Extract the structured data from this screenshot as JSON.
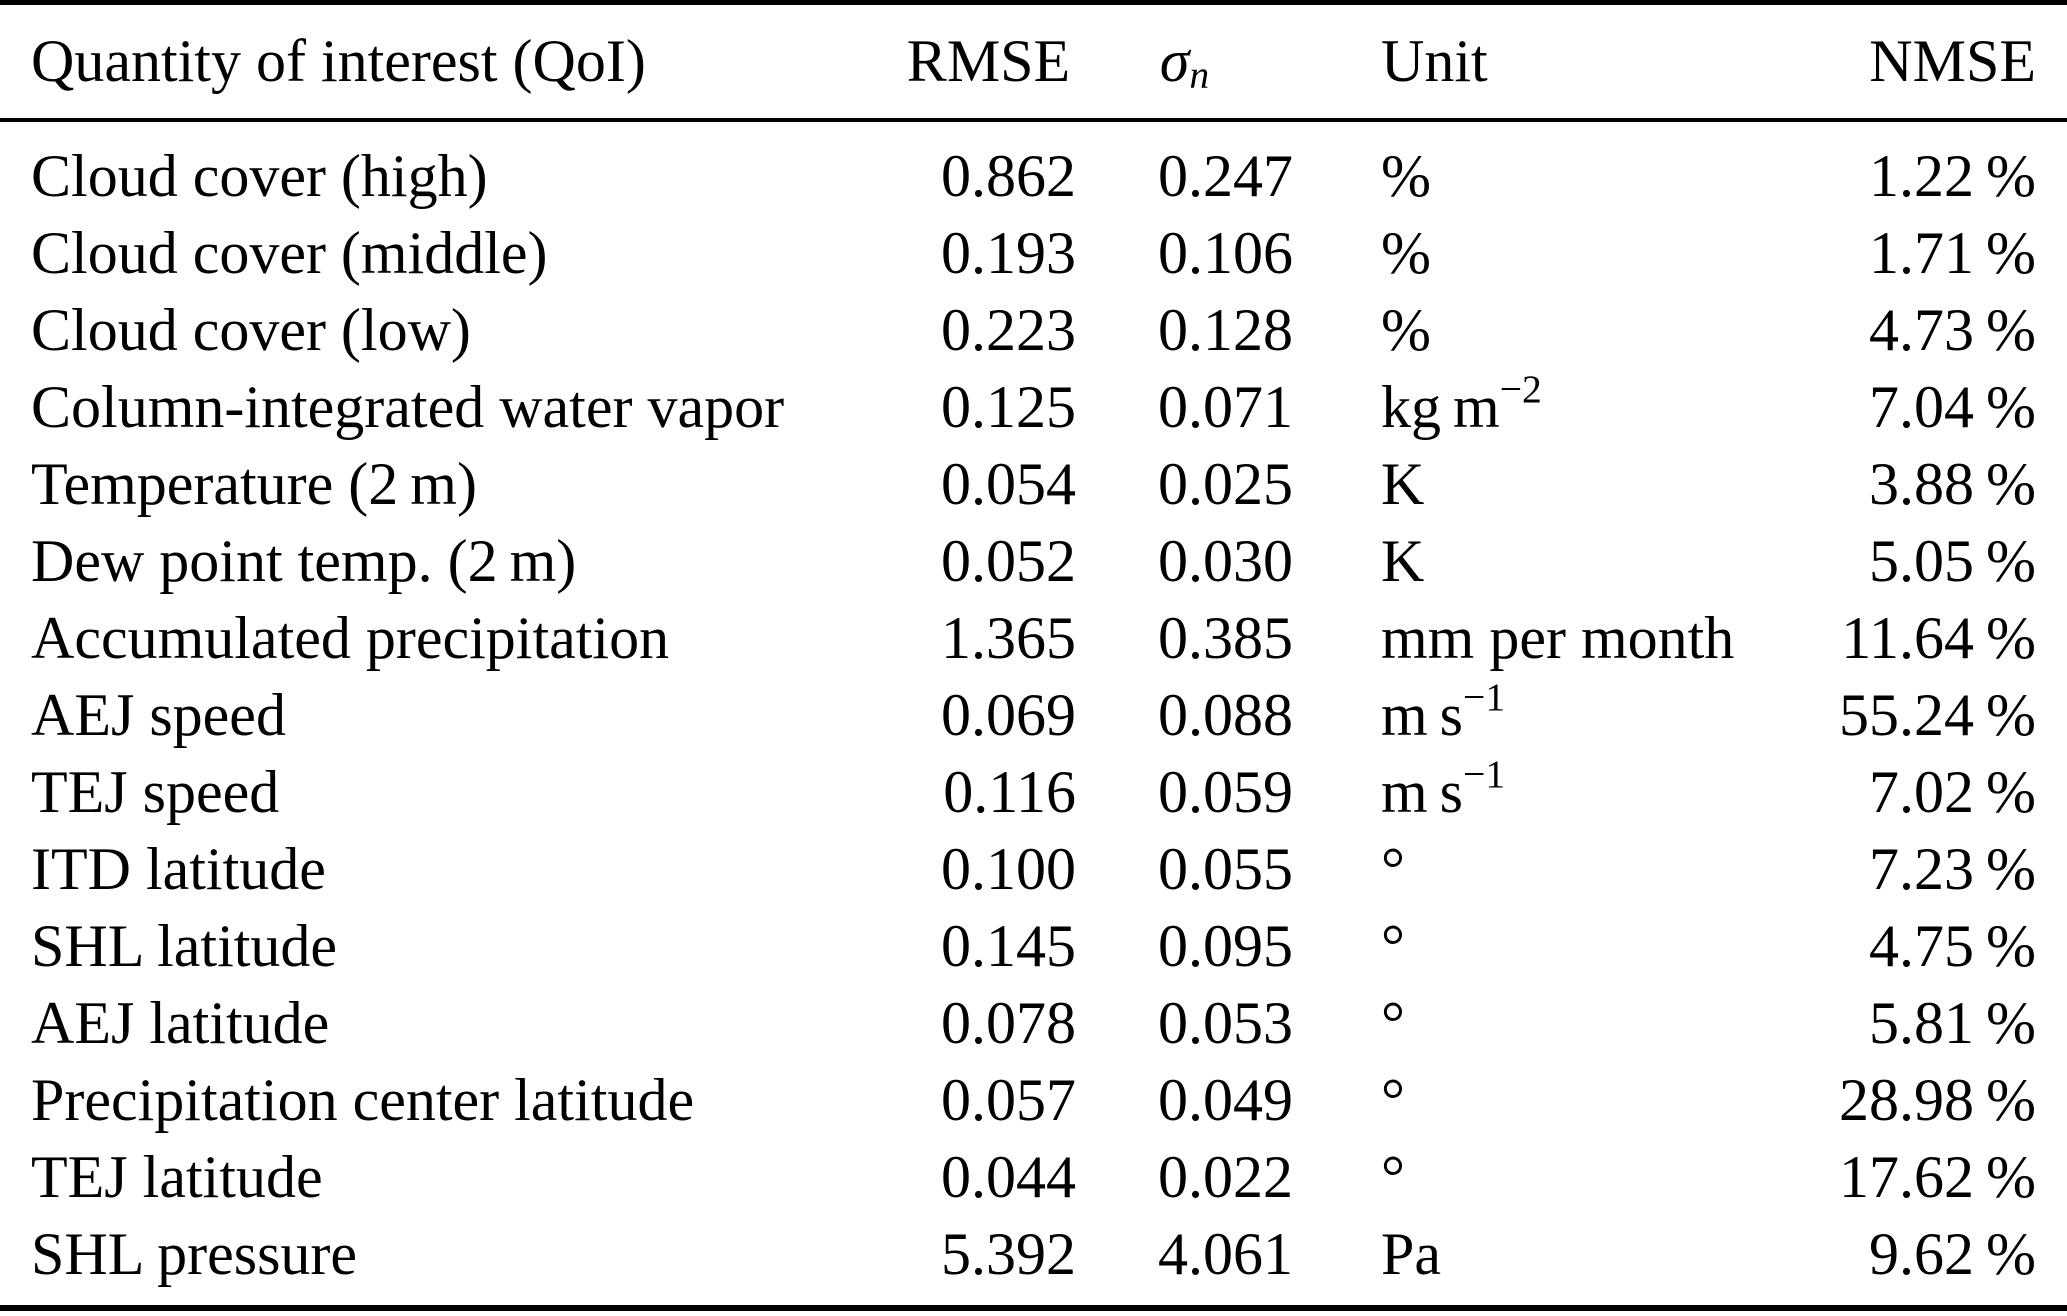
{
  "table": {
    "headers": {
      "qoi": "Quantity of interest (QoI)",
      "rmse": "RMSE",
      "sigma_symbol": "σ",
      "sigma_subscript": "n",
      "unit": "Unit",
      "nmse": "NMSE"
    },
    "rows": [
      {
        "qoi": "Cloud cover (high)",
        "rmse": "0.862",
        "sigma_n": "0.247",
        "unit_base": "%",
        "unit_sup": "",
        "nmse": "1.22 %"
      },
      {
        "qoi": "Cloud cover (middle)",
        "rmse": "0.193",
        "sigma_n": "0.106",
        "unit_base": "%",
        "unit_sup": "",
        "nmse": "1.71 %"
      },
      {
        "qoi": "Cloud cover (low)",
        "rmse": "0.223",
        "sigma_n": "0.128",
        "unit_base": "%",
        "unit_sup": "",
        "nmse": "4.73 %"
      },
      {
        "qoi": "Column-integrated water vapor",
        "rmse": "0.125",
        "sigma_n": "0.071",
        "unit_base": "kg m",
        "unit_sup": "−2",
        "nmse": "7.04 %"
      },
      {
        "qoi": "Temperature (2 m)",
        "rmse": "0.054",
        "sigma_n": "0.025",
        "unit_base": "K",
        "unit_sup": "",
        "nmse": "3.88 %"
      },
      {
        "qoi": "Dew point temp. (2 m)",
        "rmse": "0.052",
        "sigma_n": "0.030",
        "unit_base": "K",
        "unit_sup": "",
        "nmse": "5.05 %"
      },
      {
        "qoi": "Accumulated precipitation",
        "rmse": "1.365",
        "sigma_n": "0.385",
        "unit_base": "mm per month",
        "unit_sup": "",
        "nmse": "11.64 %"
      },
      {
        "qoi": "AEJ speed",
        "rmse": "0.069",
        "sigma_n": "0.088",
        "unit_base": "m s",
        "unit_sup": "−1",
        "nmse": "55.24 %"
      },
      {
        "qoi": "TEJ speed",
        "rmse": "0.116",
        "sigma_n": "0.059",
        "unit_base": "m s",
        "unit_sup": "−1",
        "nmse": "7.02 %"
      },
      {
        "qoi": "ITD latitude",
        "rmse": "0.100",
        "sigma_n": "0.055",
        "unit_base": "°",
        "unit_sup": "",
        "nmse": "7.23 %"
      },
      {
        "qoi": "SHL latitude",
        "rmse": "0.145",
        "sigma_n": "0.095",
        "unit_base": "°",
        "unit_sup": "",
        "nmse": "4.75 %"
      },
      {
        "qoi": "AEJ latitude",
        "rmse": "0.078",
        "sigma_n": "0.053",
        "unit_base": "°",
        "unit_sup": "",
        "nmse": "5.81 %"
      },
      {
        "qoi": "Precipitation center latitude",
        "rmse": "0.057",
        "sigma_n": "0.049",
        "unit_base": "°",
        "unit_sup": "",
        "nmse": "28.98 %"
      },
      {
        "qoi": "TEJ latitude",
        "rmse": "0.044",
        "sigma_n": "0.022",
        "unit_base": "°",
        "unit_sup": "",
        "nmse": "17.62 %"
      },
      {
        "qoi": "SHL pressure",
        "rmse": "5.392",
        "sigma_n": "4.061",
        "unit_base": "Pa",
        "unit_sup": "",
        "nmse": "9.62 %"
      }
    ]
  }
}
